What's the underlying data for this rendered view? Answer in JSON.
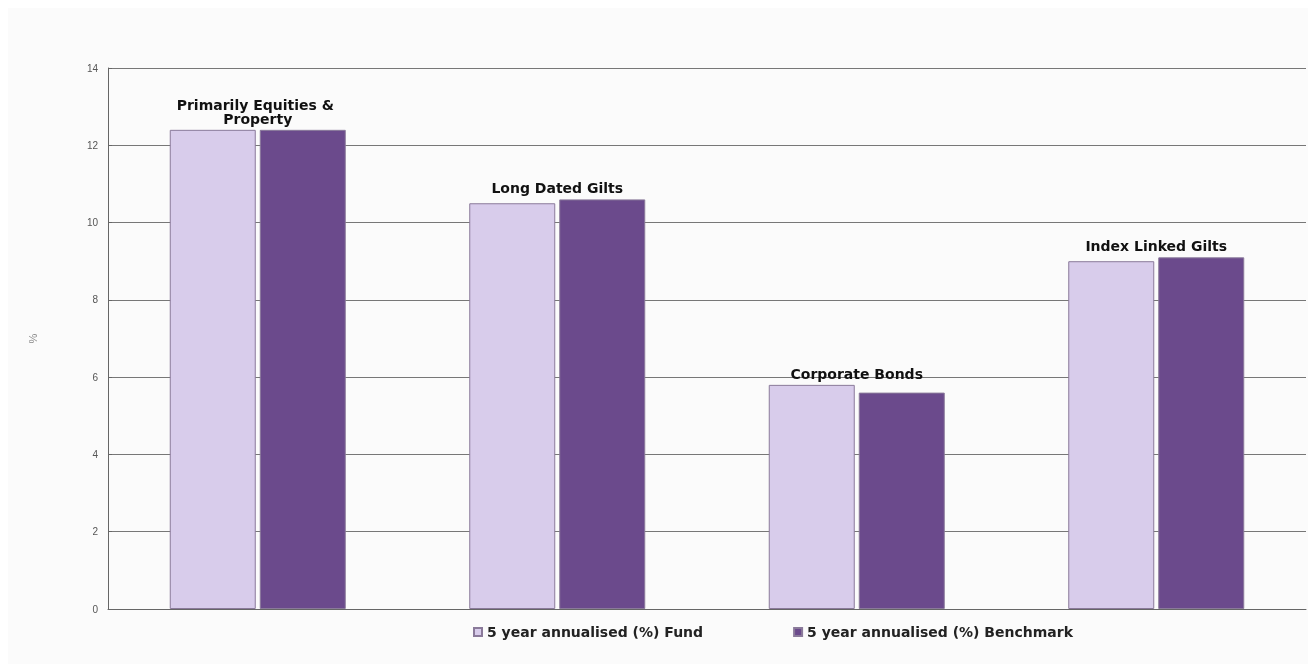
{
  "chart_data": {
    "type": "bar",
    "ylabel": "%",
    "categories": [
      "Primarily Equities & Property",
      "Long Dated Gilts",
      "Corporate Bonds",
      "Index Linked Gilts"
    ],
    "series": [
      {
        "name": "5 year annualised (%) Fund",
        "color": "#d8cceb",
        "values": [
          12.4,
          10.5,
          5.8,
          9.0
        ]
      },
      {
        "name": "5 year annualised (%) Benchmark",
        "color": "#6b4a8c",
        "values": [
          12.4,
          10.6,
          5.6,
          9.1
        ]
      }
    ],
    "ylim": [
      0,
      14
    ],
    "yticks": [
      0,
      2,
      4,
      6,
      8,
      10,
      12,
      14
    ],
    "grid": "y",
    "legend": "bottom"
  }
}
